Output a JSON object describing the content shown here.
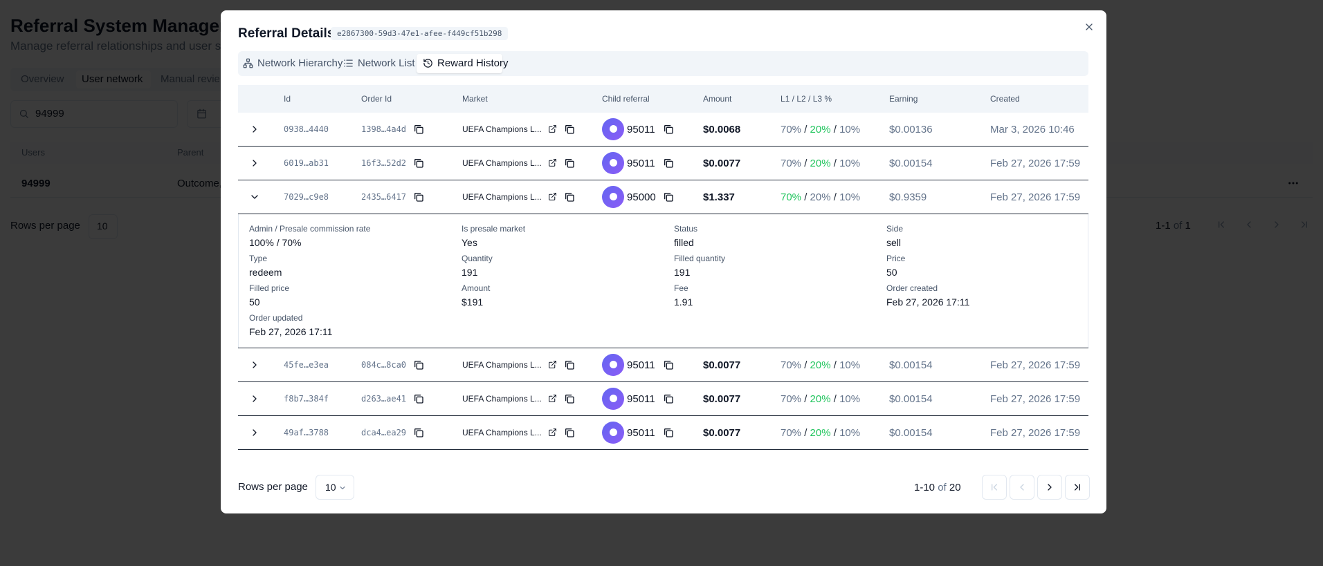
{
  "background": {
    "title": "Referral System Managem",
    "subtitle": "Manage referral relationships and user s",
    "tabs": [
      "Overview",
      "User network",
      "Manual revie"
    ],
    "active_tab": 1,
    "search": "94999",
    "table": {
      "headers": [
        "Users",
        "Parent"
      ],
      "rows": [
        [
          "94999",
          "Outcome,"
        ]
      ]
    },
    "rows_per_page_label": "Rows per page",
    "rows_per_page": "10",
    "range": "1-1",
    "of": "of",
    "total": "1"
  },
  "modal": {
    "title": "Referral Details",
    "id": "e2867300-59d3-47e1-afee-f449cf51b298",
    "tabs": [
      "Network Hierarchy",
      "Network List",
      "Reward History"
    ],
    "active_tab": 2,
    "columns": [
      "Id",
      "Order Id",
      "Market",
      "Child referral",
      "Amount",
      "L1 / L2 / L3 %",
      "Earning",
      "Created"
    ],
    "separator": "/",
    "rows": [
      {
        "id": "0938…4440",
        "order_id": "1398…4a4d",
        "market": "UEFA Champions L...",
        "child": "95011",
        "amount": "$0.0068",
        "split": [
          "70%",
          "20%",
          "10%"
        ],
        "highlight": 1,
        "earning": "$0.00136",
        "created": "Mar 3, 2026 10:46",
        "expanded": false
      },
      {
        "id": "6019…ab31",
        "order_id": "16f3…52d2",
        "market": "UEFA Champions L...",
        "child": "95011",
        "amount": "$0.0077",
        "split": [
          "70%",
          "20%",
          "10%"
        ],
        "highlight": 1,
        "earning": "$0.00154",
        "created": "Feb 27, 2026 17:59",
        "expanded": false
      },
      {
        "id": "7029…c9e8",
        "order_id": "2435…6417",
        "market": "UEFA Champions L...",
        "child": "95000",
        "amount": "$1.337",
        "split": [
          "70%",
          "20%",
          "10%"
        ],
        "highlight": 0,
        "earning": "$0.9359",
        "created": "Feb 27, 2026 17:59",
        "expanded": true,
        "details": [
          {
            "label": "Admin / Presale commission rate",
            "value": "100% / 70%"
          },
          {
            "label": "Is presale market",
            "value": "Yes"
          },
          {
            "label": "Status",
            "value": "filled"
          },
          {
            "label": "Side",
            "value": "sell"
          },
          {
            "label": "Type",
            "value": "redeem"
          },
          {
            "label": "Quantity",
            "value": "191"
          },
          {
            "label": "Filled quantity",
            "value": "191"
          },
          {
            "label": "Price",
            "value": "50"
          },
          {
            "label": "Filled price",
            "value": "50"
          },
          {
            "label": "Amount",
            "value": "$191"
          },
          {
            "label": "Fee",
            "value": "1.91"
          },
          {
            "label": "Order created",
            "value": "Feb 27, 2026 17:11"
          },
          {
            "label": "Order updated",
            "value": "Feb 27, 2026 17:11"
          }
        ]
      },
      {
        "id": "45fe…e3ea",
        "order_id": "084c…8ca0",
        "market": "UEFA Champions L...",
        "child": "95011",
        "amount": "$0.0077",
        "split": [
          "70%",
          "20%",
          "10%"
        ],
        "highlight": 1,
        "earning": "$0.00154",
        "created": "Feb 27, 2026 17:59",
        "expanded": false
      },
      {
        "id": "f8b7…384f",
        "order_id": "d263…ae41",
        "market": "UEFA Champions L...",
        "child": "95011",
        "amount": "$0.0077",
        "split": [
          "70%",
          "20%",
          "10%"
        ],
        "highlight": 1,
        "earning": "$0.00154",
        "created": "Feb 27, 2026 17:59",
        "expanded": false
      },
      {
        "id": "49af…3788",
        "order_id": "dca4…ea29",
        "market": "UEFA Champions L...",
        "child": "95011",
        "amount": "$0.0077",
        "split": [
          "70%",
          "20%",
          "10%"
        ],
        "highlight": 1,
        "earning": "$0.00154",
        "created": "Feb 27, 2026 17:59",
        "expanded": false
      }
    ],
    "rows_per_page_label": "Rows per page",
    "rows_per_page": "10",
    "range": "1-10",
    "of": "of",
    "total": "20"
  }
}
